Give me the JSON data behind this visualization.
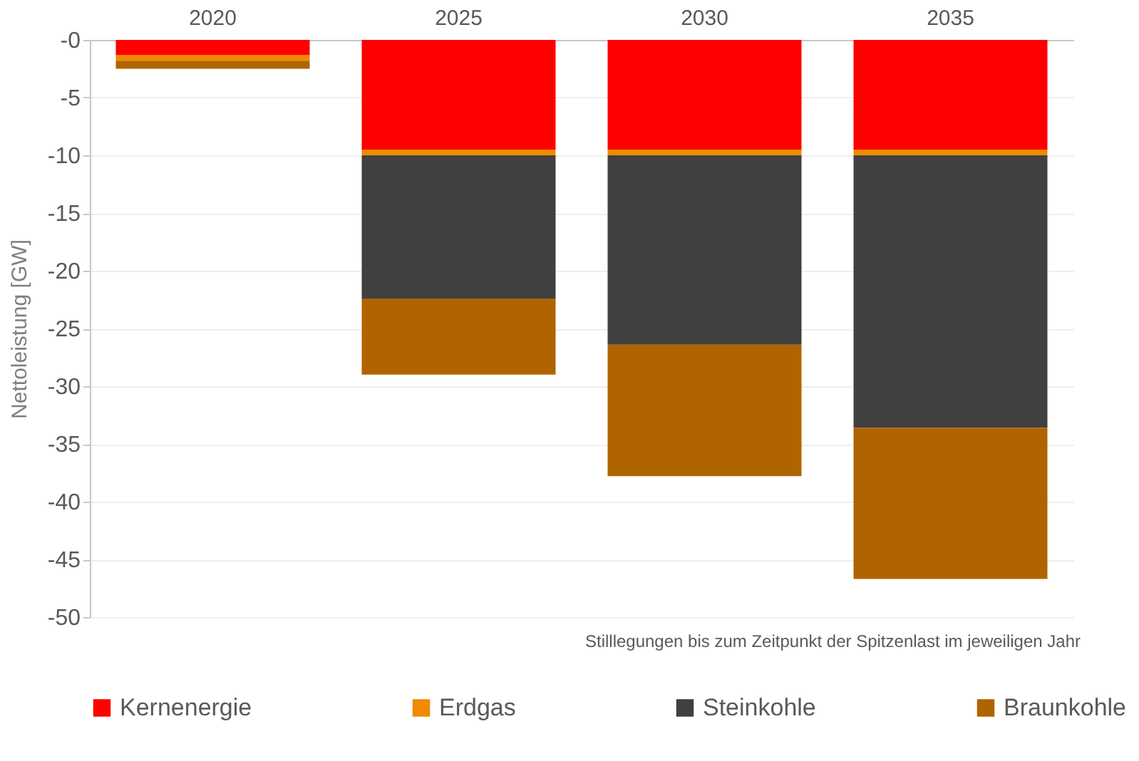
{
  "chart_data": {
    "type": "bar",
    "stacked": true,
    "ylabel": "Nettoleistung [GW]",
    "categories": [
      "2020",
      "2025",
      "2030",
      "2035"
    ],
    "series": [
      {
        "name": "Kernenergie",
        "color": "#ff0000",
        "values": [
          -1.3,
          -9.5,
          -9.5,
          -9.5
        ]
      },
      {
        "name": "Erdgas",
        "color": "#f08a00",
        "values": [
          -0.5,
          -0.5,
          -0.5,
          -0.5
        ]
      },
      {
        "name": "Steinkohle",
        "color": "#404040",
        "values": [
          0,
          -12.4,
          -16.4,
          -23.6
        ]
      },
      {
        "name": "Braunkohle",
        "color": "#b06400",
        "values": [
          -0.7,
          -6.6,
          -11.4,
          -13.1
        ]
      }
    ],
    "ylim": [
      -50,
      0
    ],
    "yticks": [
      {
        "value": 0,
        "label": "-0"
      },
      -5,
      -10,
      -15,
      -20,
      -25,
      -30,
      -35,
      -40,
      -45,
      -50
    ],
    "grid": "y",
    "legend": "bottom",
    "annotations": [
      "Stilllegungen bis zum Zeitpunkt der Spitzenlast im jeweiligen Jahr"
    ]
  }
}
